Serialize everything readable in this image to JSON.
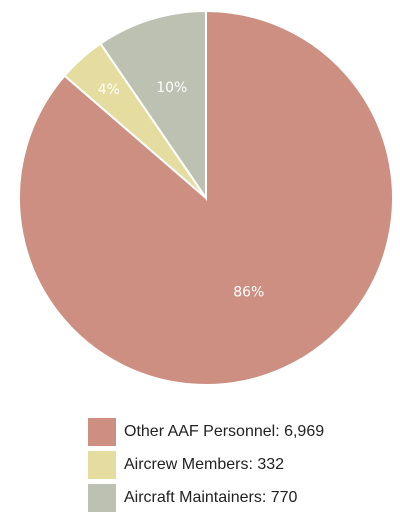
{
  "chart_data": {
    "type": "pie",
    "slices": [
      {
        "label": "Other AAF Personnel: 6,969",
        "value": 6969,
        "percent_label": "86%",
        "color": "#cc8f82"
      },
      {
        "label": "Aircrew Members: 332",
        "value": 332,
        "percent_label": "4%",
        "color": "#e5dd9f"
      },
      {
        "label": "Aircraft Maintainers: 770",
        "value": 770,
        "percent_label": "10%",
        "color": "#bcc1b1"
      }
    ],
    "legend_position": "bottom"
  }
}
